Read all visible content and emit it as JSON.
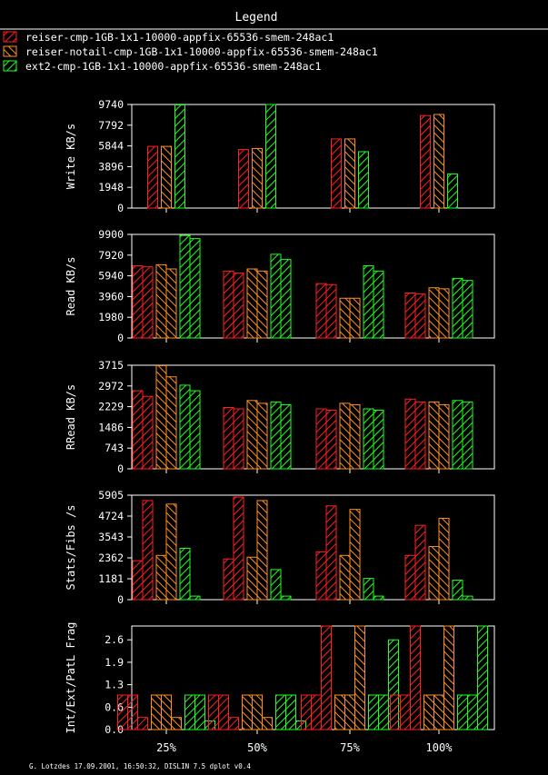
{
  "legend": {
    "title": "Legend",
    "entries": [
      {
        "label": "reiser-cmp-1GB-1x1-10000-appfix-65536-smem-248ac1",
        "color": "#ff2020"
      },
      {
        "label": "reiser-notail-cmp-1GB-1x1-10000-appfix-65536-smem-248ac1",
        "color": "#ff9020"
      },
      {
        "label": "ext2-cmp-1GB-1x1-10000-appfix-65536-smem-248ac1",
        "color": "#20ff20"
      }
    ]
  },
  "footer": "G. Lotzdes 17.09.2001, 16:50:32, DISLIN 7.5 dplot v0.4",
  "chart_data": [
    {
      "type": "bar",
      "ylabel": "Write KB/s",
      "ylim": [
        0,
        9740
      ],
      "yticks": [
        "0",
        "1948",
        "3896",
        "5844",
        "7792",
        "9740"
      ],
      "categories": [
        "25%",
        "50%",
        "75%",
        "100%"
      ],
      "show_xticklabels": false,
      "series": [
        {
          "values": [
            [
              5800
            ],
            [
              5500
            ],
            [
              6500
            ],
            [
              8700
            ]
          ]
        },
        {
          "values": [
            [
              5800
            ],
            [
              5600
            ],
            [
              6500
            ],
            [
              8800
            ]
          ]
        },
        {
          "values": [
            [
              9700
            ],
            [
              9800
            ],
            [
              5300
            ],
            [
              3200
            ]
          ]
        }
      ]
    },
    {
      "type": "bar",
      "ylabel": "Read KB/s",
      "ylim": [
        0,
        9900
      ],
      "yticks": [
        "0",
        "1980",
        "3960",
        "5940",
        "7920",
        "9900"
      ],
      "categories": [
        "25%",
        "50%",
        "75%",
        "100%"
      ],
      "show_xticklabels": false,
      "series": [
        {
          "values": [
            [
              6900,
              6800
            ],
            [
              6400,
              6200
            ],
            [
              5200,
              5100
            ],
            [
              4300,
              4200
            ]
          ]
        },
        {
          "values": [
            [
              7000,
              6600
            ],
            [
              6600,
              6400
            ],
            [
              3800,
              3800
            ],
            [
              4800,
              4700
            ]
          ]
        },
        {
          "values": [
            [
              9800,
              9500
            ],
            [
              8000,
              7500
            ],
            [
              6900,
              6400
            ],
            [
              5700,
              5500
            ]
          ]
        }
      ]
    },
    {
      "type": "bar",
      "ylabel": "RRead KB/s",
      "ylim": [
        0,
        3715
      ],
      "yticks": [
        "0",
        "743",
        "1486",
        "2229",
        "2972",
        "3715"
      ],
      "categories": [
        "25%",
        "50%",
        "75%",
        "100%"
      ],
      "show_xticklabels": false,
      "series": [
        {
          "values": [
            [
              2800,
              2600
            ],
            [
              2200,
              2150
            ],
            [
              2150,
              2100
            ],
            [
              2500,
              2400
            ]
          ]
        },
        {
          "values": [
            [
              3700,
              3300
            ],
            [
              2450,
              2350
            ],
            [
              2350,
              2300
            ],
            [
              2400,
              2300
            ]
          ]
        },
        {
          "values": [
            [
              3000,
              2800
            ],
            [
              2400,
              2300
            ],
            [
              2150,
              2100
            ],
            [
              2450,
              2400
            ]
          ]
        }
      ]
    },
    {
      "type": "bar",
      "ylabel": "Stats/Fibs /s",
      "ylim": [
        0,
        5905
      ],
      "yticks": [
        "0",
        "1181",
        "2362",
        "3543",
        "4724",
        "5905"
      ],
      "categories": [
        "25%",
        "50%",
        "75%",
        "100%"
      ],
      "show_xticklabels": false,
      "series": [
        {
          "values": [
            [
              2200,
              5600
            ],
            [
              2300,
              5800
            ],
            [
              2700,
              5300
            ],
            [
              2500,
              4200
            ]
          ]
        },
        {
          "values": [
            [
              2500,
              5400
            ],
            [
              2400,
              5600
            ],
            [
              2500,
              5100
            ],
            [
              3000,
              4600
            ]
          ]
        },
        {
          "values": [
            [
              2900,
              200
            ],
            [
              1700,
              200
            ],
            [
              1200,
              200
            ],
            [
              1100,
              200
            ]
          ]
        }
      ]
    },
    {
      "type": "bar",
      "ylabel": "Int/Ext/PatL Frag",
      "ylim": [
        0,
        3.0
      ],
      "yticks": [
        "0.0",
        "0.6",
        "1.3",
        "1.9",
        "2.6"
      ],
      "ytick_values": [
        0,
        0.65,
        1.3,
        1.95,
        2.6
      ],
      "categories": [
        "25%",
        "50%",
        "75%",
        "100%"
      ],
      "show_xticklabels": true,
      "series": [
        {
          "values": [
            [
              1.0,
              1.0,
              0.35
            ],
            [
              1.0,
              1.0,
              0.35
            ],
            [
              1.0,
              1.0,
              3.0
            ],
            [
              1.0,
              1.0,
              3.0
            ]
          ]
        },
        {
          "values": [
            [
              1.0,
              1.0,
              0.35
            ],
            [
              1.0,
              1.0,
              0.35
            ],
            [
              1.0,
              1.0,
              3.0
            ],
            [
              1.0,
              1.0,
              3.0
            ]
          ]
        },
        {
          "values": [
            [
              1.0,
              1.0,
              0.25
            ],
            [
              1.0,
              1.0,
              0.25
            ],
            [
              1.0,
              1.0,
              2.6
            ],
            [
              1.0,
              1.0,
              3.0
            ]
          ]
        }
      ]
    }
  ]
}
